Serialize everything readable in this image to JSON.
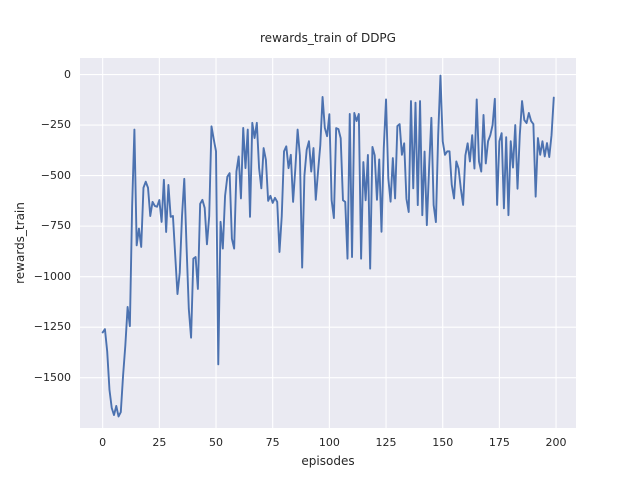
{
  "figure": {
    "background": "#ffffff",
    "plot_background": "#eaeaf2",
    "grid_color": "#ffffff",
    "text_color": "#262626"
  },
  "chart_data": {
    "type": "line",
    "title": "rewards_train of DDPG",
    "xlabel": "episodes",
    "ylabel": "rewards_train",
    "x_ticks": [
      0,
      25,
      50,
      75,
      100,
      125,
      150,
      175,
      200
    ],
    "y_ticks": [
      0,
      -250,
      -500,
      -750,
      -1000,
      -1250,
      -1500
    ],
    "xlim": [
      -10,
      208.8
    ],
    "ylim": [
      -1749,
      82
    ],
    "grid": true,
    "legend_position": "none",
    "line_color": "#4c72b0",
    "series": [
      {
        "name": "rewards_train",
        "x_start": 0,
        "x_step": 1,
        "values": [
          -1276,
          -1260,
          -1370,
          -1560,
          -1650,
          -1685,
          -1640,
          -1692,
          -1670,
          -1490,
          -1340,
          -1150,
          -1245,
          -650,
          -272,
          -845,
          -762,
          -853,
          -560,
          -530,
          -560,
          -700,
          -630,
          -650,
          -654,
          -621,
          -729,
          -521,
          -779,
          -546,
          -704,
          -700,
          -895,
          -1086,
          -980,
          -700,
          -516,
          -850,
          -1160,
          -1302,
          -911,
          -903,
          -1061,
          -640,
          -620,
          -660,
          -840,
          -700,
          -256,
          -320,
          -380,
          -1434,
          -729,
          -861,
          -600,
          -505,
          -488,
          -812,
          -861,
          -480,
          -405,
          -613,
          -264,
          -463,
          -272,
          -704,
          -239,
          -314,
          -239,
          -463,
          -563,
          -364,
          -422,
          -625,
          -600,
          -635,
          -610,
          -630,
          -878,
          -700,
          -380,
          -355,
          -463,
          -397,
          -630,
          -463,
          -272,
          -400,
          -955,
          -500,
          -372,
          -330,
          -480,
          -364,
          -620,
          -480,
          -350,
          -111,
          -264,
          -305,
          -196,
          -622,
          -710,
          -265,
          -270,
          -315,
          -622,
          -630,
          -911,
          -195,
          -903,
          -190,
          -230,
          -195,
          -911,
          -433,
          -622,
          -398,
          -960,
          -358,
          -400,
          -620,
          -420,
          -778,
          -364,
          -123,
          -513,
          -629,
          -413,
          -613,
          -255,
          -245,
          -397,
          -340,
          -615,
          -680,
          -131,
          -563,
          -139,
          -646,
          -131,
          -696,
          -381,
          -745,
          -463,
          -214,
          -646,
          -730,
          -300,
          -5,
          -330,
          -397,
          -380,
          -380,
          -546,
          -613,
          -430,
          -465,
          -565,
          -645,
          -400,
          -340,
          -430,
          -300,
          -465,
          -123,
          -430,
          -480,
          -200,
          -440,
          -330,
          -300,
          -250,
          -120,
          -645,
          -330,
          -290,
          -662,
          -310,
          -696,
          -330,
          -460,
          -250,
          -565,
          -300,
          -131,
          -225,
          -240,
          -190,
          -230,
          -245,
          -604,
          -314,
          -397,
          -330,
          -405,
          -339,
          -408,
          -300,
          -114
        ]
      }
    ]
  }
}
